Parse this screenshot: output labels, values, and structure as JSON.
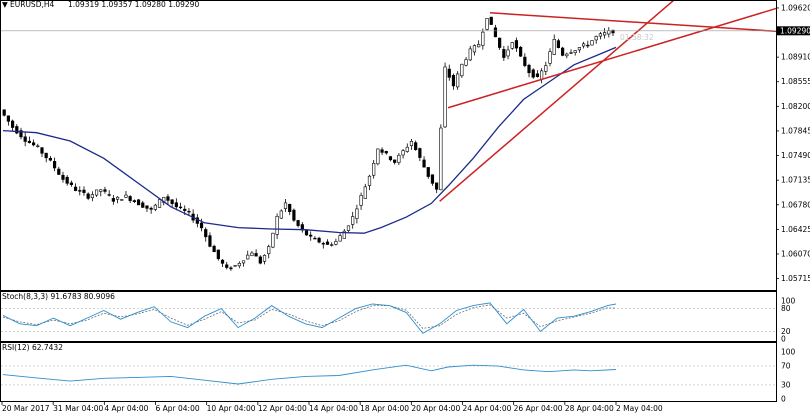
{
  "header": {
    "symbol_label": "EURUSD,H4",
    "ohlc": "1.09319 1.09357 1.09280 1.09290"
  },
  "price_marker": "1.09290",
  "countdown": "01:58:32",
  "indicators": {
    "stoch": {
      "label": "Stoch(8,3,3) 91.6783 80.9096",
      "levels": [
        "100",
        "80",
        "20",
        "0"
      ]
    },
    "rsi": {
      "label": "RSI(12) 62.7432",
      "levels": [
        "100",
        "70",
        "30",
        "0"
      ]
    }
  },
  "colors": {
    "candle": "#000000",
    "ma": "#1c2a8a",
    "trendline": "#cc2222",
    "oscillator": "#2f8fd0",
    "signal": "#6b6b6b",
    "grid_level": "#bbbbbb"
  },
  "chart_data": {
    "type": "line",
    "y_ticks": [
      "1.09620",
      "1.09265",
      "1.08910",
      "1.08555",
      "1.08200",
      "1.07845",
      "1.07490",
      "1.07135",
      "1.06780",
      "1.06425",
      "1.06070",
      "1.05715"
    ],
    "x_ticks": [
      "20 Mar 2017",
      "31 Mar 04:00",
      "4 Apr 04:00",
      "6 Apr 04:00",
      "10 Apr 04:00",
      "12 Apr 04:00",
      "14 Apr 04:00",
      "18 Apr 04:00",
      "20 Apr 04:00",
      "24 Apr 04:00",
      "26 Apr 04:00",
      "28 Apr 04:00",
      "2 May 04:00"
    ],
    "ylim": [
      1.0555,
      1.0972
    ],
    "close_path": [
      [
        0,
        1.0815
      ],
      [
        3,
        1.079
      ],
      [
        6,
        1.0772
      ],
      [
        9,
        1.076
      ],
      [
        12,
        1.074
      ],
      [
        15,
        1.0715
      ],
      [
        18,
        1.07
      ],
      [
        21,
        1.069
      ],
      [
        24,
        1.07
      ],
      [
        27,
        1.0685
      ],
      [
        30,
        1.069
      ],
      [
        33,
        1.068
      ],
      [
        36,
        1.067
      ],
      [
        39,
        1.069
      ],
      [
        42,
        1.0675
      ],
      [
        45,
        1.0665
      ],
      [
        48,
        1.0645
      ],
      [
        50,
        1.062
      ],
      [
        52,
        1.06
      ],
      [
        54,
        1.0585
      ],
      [
        56,
        1.059
      ],
      [
        58,
        1.06
      ],
      [
        60,
        1.061
      ],
      [
        62,
        1.0595
      ],
      [
        64,
        1.0615
      ],
      [
        66,
        1.066
      ],
      [
        68,
        1.068
      ],
      [
        70,
        1.0655
      ],
      [
        72,
        1.064
      ],
      [
        74,
        1.063
      ],
      [
        76,
        1.0625
      ],
      [
        78,
        1.062
      ],
      [
        80,
        1.0625
      ],
      [
        82,
        1.064
      ],
      [
        84,
        1.066
      ],
      [
        86,
        1.069
      ],
      [
        88,
        1.072
      ],
      [
        90,
        1.076
      ],
      [
        92,
        1.075
      ],
      [
        94,
        1.074
      ],
      [
        96,
        1.0755
      ],
      [
        98,
        1.077
      ],
      [
        100,
        1.0745
      ],
      [
        102,
        1.072
      ],
      [
        104,
        1.07
      ],
      [
        106,
        1.0875
      ],
      [
        108,
        1.085
      ],
      [
        110,
        1.088
      ],
      [
        112,
        1.09
      ],
      [
        114,
        1.091
      ],
      [
        116,
        1.095
      ],
      [
        118,
        1.092
      ],
      [
        120,
        1.089
      ],
      [
        122,
        1.0915
      ],
      [
        124,
        1.089
      ],
      [
        126,
        1.087
      ],
      [
        128,
        1.086
      ],
      [
        130,
        1.088
      ],
      [
        132,
        1.0915
      ],
      [
        134,
        1.0895
      ],
      [
        136,
        1.09
      ],
      [
        138,
        1.0905
      ],
      [
        140,
        1.091
      ],
      [
        142,
        1.092
      ],
      [
        144,
        1.0925
      ],
      [
        146,
        1.0929
      ]
    ],
    "moving_average": [
      [
        0,
        1.0785
      ],
      [
        8,
        1.0782
      ],
      [
        16,
        1.077
      ],
      [
        24,
        1.0745
      ],
      [
        32,
        1.071
      ],
      [
        40,
        1.0675
      ],
      [
        48,
        1.0652
      ],
      [
        56,
        1.0645
      ],
      [
        64,
        1.0643
      ],
      [
        72,
        1.0642
      ],
      [
        80,
        1.0638
      ],
      [
        86,
        1.0637
      ],
      [
        90,
        1.0645
      ],
      [
        96,
        1.066
      ],
      [
        102,
        1.068
      ],
      [
        106,
        1.0705
      ],
      [
        112,
        1.0745
      ],
      [
        118,
        1.079
      ],
      [
        124,
        1.083
      ],
      [
        130,
        1.0855
      ],
      [
        136,
        1.088
      ],
      [
        142,
        1.0895
      ],
      [
        146,
        1.0905
      ]
    ],
    "trendlines": [
      {
        "from": [
          104,
          1.0683
        ],
        "to": [
          163,
          1.099
        ]
      },
      {
        "from": [
          106,
          1.0818
        ],
        "to": [
          190,
          1.0972
        ]
      },
      {
        "from": [
          116,
          1.0955
        ],
        "to": [
          185,
          1.0928
        ]
      }
    ],
    "stoch_main": [
      [
        0,
        62
      ],
      [
        4,
        40
      ],
      [
        8,
        35
      ],
      [
        12,
        55
      ],
      [
        16,
        35
      ],
      [
        20,
        55
      ],
      [
        24,
        75
      ],
      [
        28,
        52
      ],
      [
        32,
        70
      ],
      [
        36,
        85
      ],
      [
        40,
        45
      ],
      [
        44,
        30
      ],
      [
        48,
        60
      ],
      [
        52,
        80
      ],
      [
        56,
        30
      ],
      [
        60,
        55
      ],
      [
        64,
        88
      ],
      [
        68,
        60
      ],
      [
        72,
        40
      ],
      [
        76,
        30
      ],
      [
        80,
        55
      ],
      [
        84,
        80
      ],
      [
        88,
        92
      ],
      [
        92,
        88
      ],
      [
        96,
        70
      ],
      [
        100,
        15
      ],
      [
        104,
        40
      ],
      [
        108,
        75
      ],
      [
        112,
        88
      ],
      [
        116,
        95
      ],
      [
        120,
        40
      ],
      [
        124,
        78
      ],
      [
        128,
        20
      ],
      [
        132,
        55
      ],
      [
        136,
        60
      ],
      [
        140,
        72
      ],
      [
        144,
        88
      ],
      [
        146,
        92
      ]
    ],
    "stoch_signal": [
      [
        0,
        58
      ],
      [
        4,
        45
      ],
      [
        8,
        38
      ],
      [
        12,
        50
      ],
      [
        16,
        40
      ],
      [
        20,
        50
      ],
      [
        24,
        68
      ],
      [
        28,
        58
      ],
      [
        32,
        66
      ],
      [
        36,
        78
      ],
      [
        40,
        55
      ],
      [
        44,
        36
      ],
      [
        48,
        52
      ],
      [
        52,
        72
      ],
      [
        56,
        42
      ],
      [
        60,
        50
      ],
      [
        64,
        78
      ],
      [
        68,
        66
      ],
      [
        72,
        48
      ],
      [
        76,
        35
      ],
      [
        80,
        48
      ],
      [
        84,
        72
      ],
      [
        88,
        88
      ],
      [
        92,
        88
      ],
      [
        96,
        76
      ],
      [
        100,
        28
      ],
      [
        104,
        35
      ],
      [
        108,
        65
      ],
      [
        112,
        82
      ],
      [
        116,
        90
      ],
      [
        120,
        55
      ],
      [
        124,
        68
      ],
      [
        128,
        32
      ],
      [
        132,
        48
      ],
      [
        136,
        58
      ],
      [
        140,
        68
      ],
      [
        144,
        82
      ],
      [
        146,
        81
      ]
    ],
    "rsi": [
      [
        0,
        52
      ],
      [
        8,
        45
      ],
      [
        16,
        38
      ],
      [
        24,
        44
      ],
      [
        32,
        46
      ],
      [
        40,
        48
      ],
      [
        48,
        40
      ],
      [
        56,
        32
      ],
      [
        64,
        42
      ],
      [
        72,
        48
      ],
      [
        80,
        50
      ],
      [
        88,
        62
      ],
      [
        96,
        72
      ],
      [
        102,
        60
      ],
      [
        106,
        68
      ],
      [
        112,
        72
      ],
      [
        118,
        70
      ],
      [
        124,
        62
      ],
      [
        130,
        58
      ],
      [
        136,
        62
      ],
      [
        140,
        60
      ],
      [
        146,
        62.74
      ]
    ]
  }
}
